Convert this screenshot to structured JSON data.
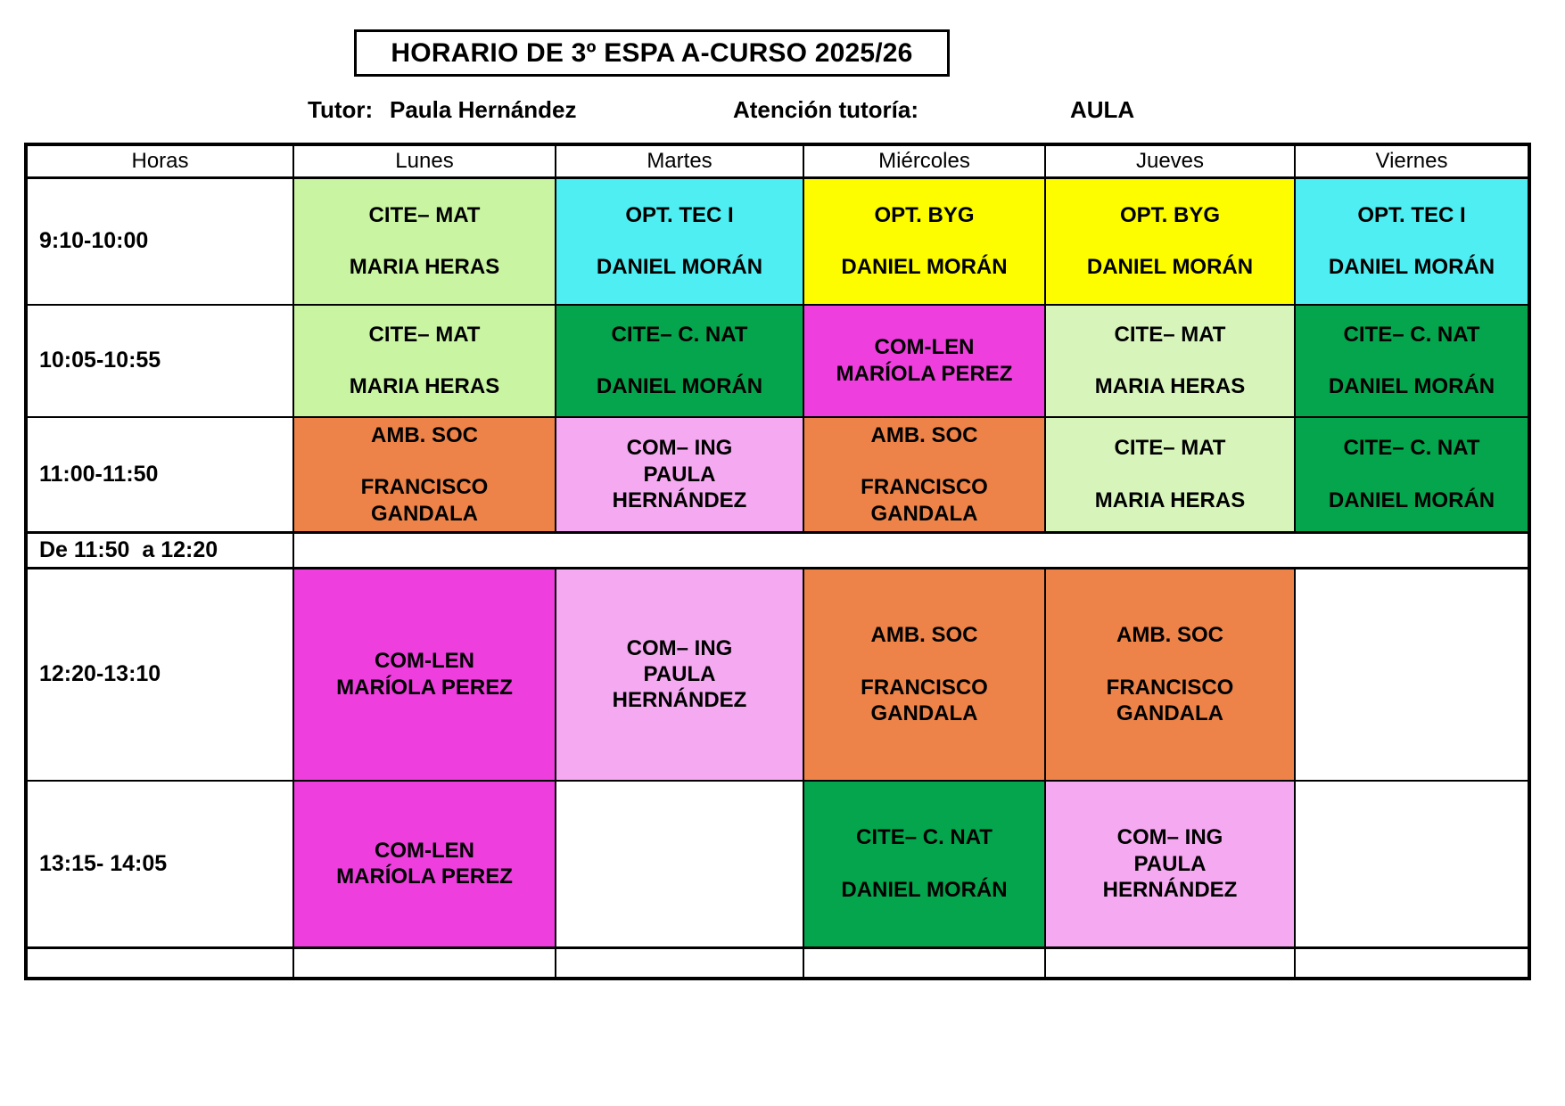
{
  "page": {
    "title": "HORARIO DE 3º ESPA A-CURSO 2025/26"
  },
  "info_bar": {
    "tutor_label": "Tutor:",
    "tutor_name": "Paula Hernández",
    "attention_label": "Atención tutoría:",
    "room_label": "AULA"
  },
  "palette": {
    "light_green": "#c9f5a2",
    "pale_green": "#d7f4bb",
    "cyan": "#4feef2",
    "yellow": "#fdfd00",
    "green": "#05a54e",
    "magenta": "#ee3fde",
    "orange": "#ed8348",
    "pink": "#f5a9f1",
    "white": "#ffffff",
    "border": "#000000"
  },
  "timetable": {
    "headers": [
      "Horas",
      "Lunes",
      "Martes",
      "Miércoles",
      "Jueves",
      "Viernes"
    ],
    "rows": [
      {
        "time": "9:10-10:00",
        "cells": [
          {
            "text": "CITE– MAT\n\nMARIA HERAS",
            "bg": "light_green"
          },
          {
            "text": "OPT. TEC I\n\nDANIEL MORÁN",
            "bg": "cyan"
          },
          {
            "text": "OPT. BYG\n\nDANIEL MORÁN",
            "bg": "yellow"
          },
          {
            "text": "OPT. BYG\n\nDANIEL MORÁN",
            "bg": "yellow"
          },
          {
            "text": "OPT. TEC I\n\nDANIEL MORÁN",
            "bg": "cyan"
          }
        ]
      },
      {
        "time": "10:05-10:55",
        "cells": [
          {
            "text": "CITE– MAT\n\nMARIA HERAS",
            "bg": "light_green"
          },
          {
            "text": "CITE– C. NAT\n\nDANIEL MORÁN",
            "bg": "green"
          },
          {
            "text": "COM-LEN\nMARÍOLA PEREZ",
            "bg": "magenta"
          },
          {
            "text": "CITE– MAT\n\nMARIA HERAS",
            "bg": "pale_green"
          },
          {
            "text": "CITE– C. NAT\n\nDANIEL MORÁN",
            "bg": "green"
          }
        ]
      },
      {
        "time": "11:00-11:50",
        "cells": [
          {
            "text": "AMB. SOC\n\nFRANCISCO\nGANDALA",
            "bg": "orange"
          },
          {
            "text": "COM– ING\nPAULA\nHERNÁNDEZ",
            "bg": "pink"
          },
          {
            "text": "AMB. SOC\n\nFRANCISCO\nGANDALA",
            "bg": "orange"
          },
          {
            "text": "CITE– MAT\n\nMARIA HERAS",
            "bg": "pale_green"
          },
          {
            "text": "CITE– C. NAT\n\nDANIEL MORÁN",
            "bg": "green"
          }
        ]
      },
      {
        "time": "De 11:50  a 12:20",
        "break": true
      },
      {
        "time": "12:20-13:10",
        "cells": [
          {
            "text": "COM-LEN\nMARÍOLA PEREZ",
            "bg": "magenta"
          },
          {
            "text": "COM– ING\nPAULA\nHERNÁNDEZ",
            "bg": "pink"
          },
          {
            "text": "AMB. SOC\n\nFRANCISCO\nGANDALA",
            "bg": "orange"
          },
          {
            "text": "AMB. SOC\n\nFRANCISCO\nGANDALA",
            "bg": "orange"
          },
          {
            "text": "",
            "bg": "white"
          }
        ]
      },
      {
        "time": "13:15- 14:05",
        "cells": [
          {
            "text": "COM-LEN\nMARÍOLA PEREZ",
            "bg": "magenta"
          },
          {
            "text": "",
            "bg": "white"
          },
          {
            "text": "CITE– C. NAT\n\nDANIEL MORÁN",
            "bg": "green"
          },
          {
            "text": "COM– ING\nPAULA\nHERNÁNDEZ",
            "bg": "pink"
          },
          {
            "text": "",
            "bg": "white"
          }
        ]
      },
      {
        "time": "",
        "cells": [
          {
            "text": "",
            "bg": "white"
          },
          {
            "text": "",
            "bg": "white"
          },
          {
            "text": "",
            "bg": "white"
          },
          {
            "text": "",
            "bg": "white"
          },
          {
            "text": "",
            "bg": "white"
          }
        ]
      }
    ]
  }
}
